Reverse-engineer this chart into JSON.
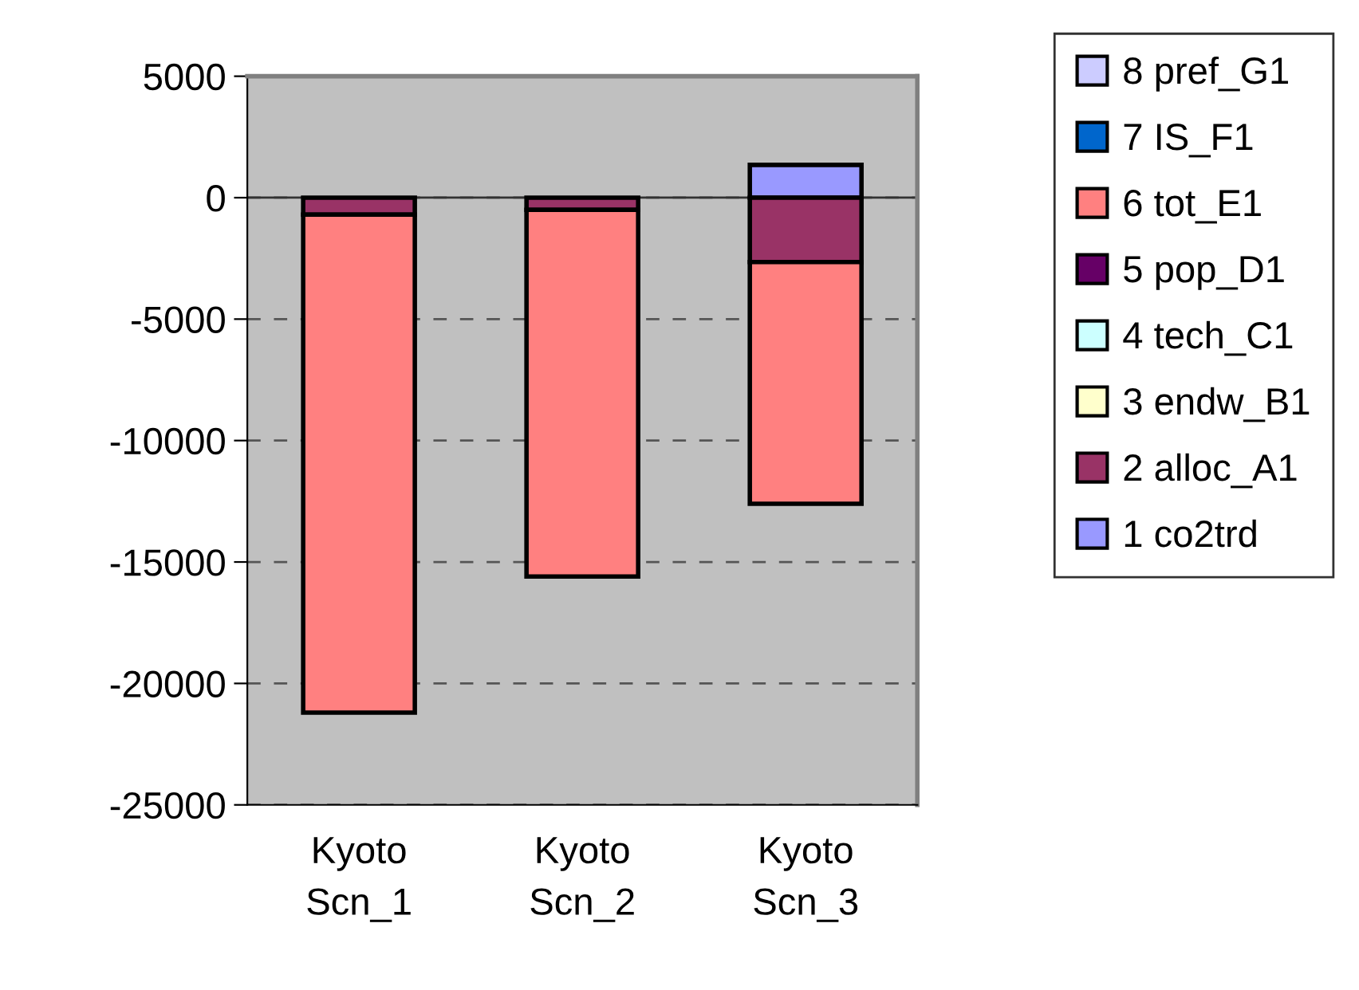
{
  "chart_data": {
    "type": "bar",
    "stacked": true,
    "categories": [
      "Kyoto\nScn_1",
      "Kyoto\nScn_2",
      "Kyoto\nScn_3"
    ],
    "series": [
      {
        "name": "1 co2trd",
        "color": "#9999ff",
        "values": [
          0,
          0,
          1350
        ]
      },
      {
        "name": "2 alloc_A1",
        "color": "#993366",
        "values": [
          -700,
          -500,
          -2650
        ]
      },
      {
        "name": "3 endw_B1",
        "color": "#ffffcc",
        "values": [
          0,
          0,
          0
        ]
      },
      {
        "name": "4 tech_C1",
        "color": "#ccffff",
        "values": [
          0,
          0,
          0
        ]
      },
      {
        "name": "5 pop_D1",
        "color": "#660066",
        "values": [
          0,
          0,
          0
        ]
      },
      {
        "name": "6 tot_E1",
        "color": "#ff8080",
        "values": [
          -20500,
          -15100,
          -9950
        ]
      },
      {
        "name": "7 IS_F1",
        "color": "#0066cc",
        "values": [
          0,
          0,
          0
        ]
      },
      {
        "name": "8 pref_G1",
        "color": "#ccccff",
        "values": [
          0,
          0,
          0
        ]
      }
    ],
    "ylim": [
      -25000,
      5000
    ],
    "yticks": [
      -25000,
      -20000,
      -15000,
      -10000,
      -5000,
      0,
      5000
    ],
    "grid": "y",
    "line_style": "dashed",
    "legend": "right"
  }
}
